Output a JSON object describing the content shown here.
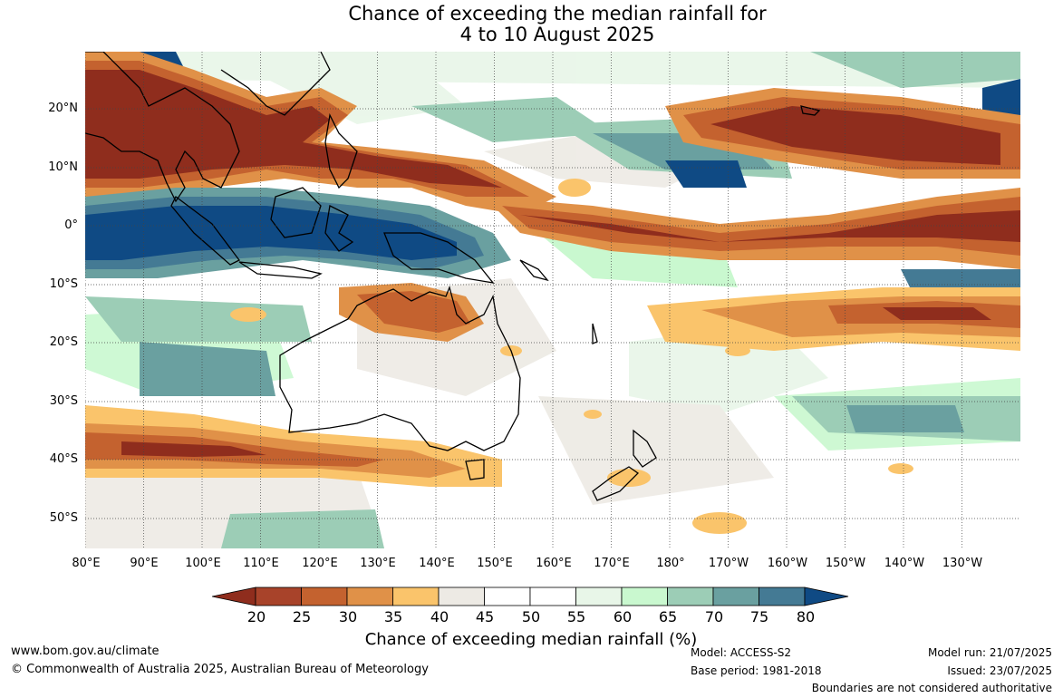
{
  "title": {
    "line1": "Chance of exceeding the median rainfall for",
    "line2": "4 to 10 August 2025"
  },
  "map": {
    "lat_labels": [
      "20°N",
      "10°N",
      "0°",
      "10°S",
      "20°S",
      "30°S",
      "40°S",
      "50°S"
    ],
    "lon_labels": [
      "80°E",
      "90°E",
      "100°E",
      "110°E",
      "120°E",
      "130°E",
      "140°E",
      "150°E",
      "160°E",
      "170°E",
      "180°",
      "170°W",
      "160°W",
      "150°W",
      "140°W",
      "130°W"
    ]
  },
  "colorbar": {
    "ticks": [
      "20",
      "25",
      "30",
      "35",
      "40",
      "45",
      "50",
      "55",
      "60",
      "65",
      "70",
      "75",
      "80"
    ],
    "colors": [
      "#8f2d1d",
      "#a8432a",
      "#c4622f",
      "#e09148",
      "#fac46b",
      "#edeae4",
      "#ffffff",
      "#ffffff",
      "#e8f6e8",
      "#c9f8cf",
      "#9ccdb6",
      "#6aa0a0",
      "#447a94",
      "#0f4a84"
    ],
    "label": "Chance of exceeding median rainfall (%)"
  },
  "footer": {
    "website": "www.bom.gov.au/climate",
    "copyright": "© Commonwealth of Australia 2025, Australian Bureau of Meteorology",
    "model": "Model: ACCESS-S2",
    "base_period": "Base period: 1981-2018",
    "model_run": "Model run: 21/07/2025",
    "issued": "Issued: 23/07/2025",
    "boundaries": "Boundaries are not considered authoritative"
  }
}
